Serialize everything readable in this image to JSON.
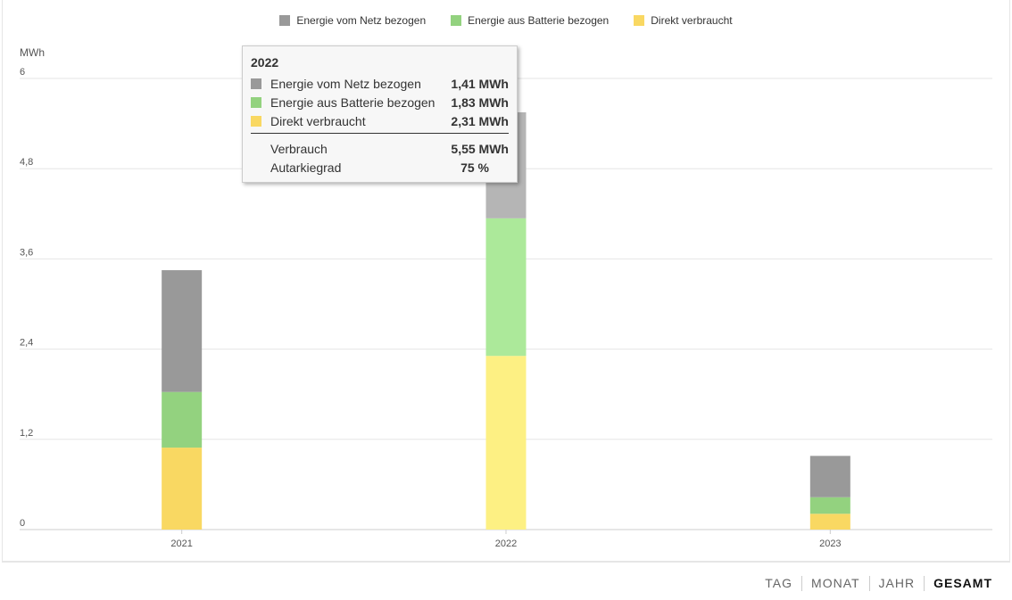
{
  "chart_data": {
    "type": "bar",
    "stacked": true,
    "ylabel": "MWh",
    "ylim": [
      0,
      6
    ],
    "yticks": [
      "0",
      "1,2",
      "2,4",
      "3,6",
      "4,8",
      "6"
    ],
    "ytick_values": [
      0,
      1.2,
      2.4,
      3.6,
      4.8,
      6
    ],
    "categories": [
      "2021",
      "2022",
      "2023"
    ],
    "series": [
      {
        "name": "Direkt verbraucht",
        "color": "#f9d862",
        "hover_color": "#fdf083",
        "values": [
          1.09,
          2.31,
          0.21
        ]
      },
      {
        "name": "Energie aus Batterie bezogen",
        "color": "#93d27f",
        "hover_color": "#ace99a",
        "values": [
          0.74,
          1.83,
          0.22
        ]
      },
      {
        "name": "Energie vom Netz bezogen",
        "color": "#999999",
        "hover_color": "#b5b5b5",
        "values": [
          1.62,
          1.41,
          0.55
        ]
      }
    ],
    "highlighted_category": "2022",
    "legend": [
      "Energie vom Netz bezogen",
      "Energie aus Batterie bezogen",
      "Direkt verbraucht"
    ],
    "legend_colors": [
      "#999999",
      "#93d27f",
      "#f9d862"
    ],
    "legend_position": "top-center",
    "grid": true
  },
  "tooltip": {
    "title": "2022",
    "rows": [
      {
        "label": "Energie vom Netz bezogen",
        "value": "1,41 MWh",
        "color": "#999999"
      },
      {
        "label": "Energie aus Batterie bezogen",
        "value": "1,83 MWh",
        "color": "#93d27f"
      },
      {
        "label": "Direkt verbraucht",
        "value": "2,31 MWh",
        "color": "#f9d862"
      }
    ],
    "total_label": "Verbrauch",
    "total_value": "5,55 MWh",
    "autarky_label": "Autarkiegrad",
    "autarky_value": "75 %"
  },
  "modes": [
    "TAG",
    "MONAT",
    "JAHR",
    "GESAMT"
  ],
  "active_mode": "GESAMT"
}
